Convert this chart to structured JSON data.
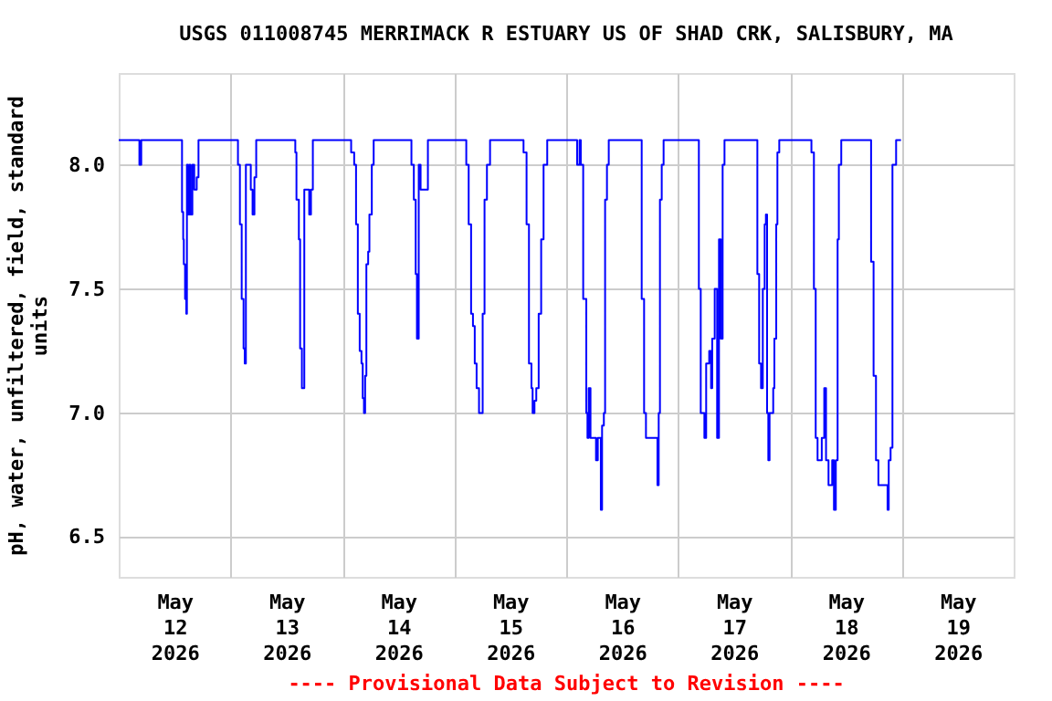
{
  "chart_data": {
    "type": "step",
    "title": "USGS 011008745 MERRIMACK R ESTUARY US OF SHAD CRK, SALISBURY, MA",
    "ylabel": "pH, water, unfiltered, field, standard units",
    "annotations": [
      "---- Provisional Data Subject to Revision ----"
    ],
    "xlim": [
      "2026-05-12T00:00",
      "2026-05-20T00:00"
    ],
    "xticks": [
      {
        "value": "2026-05-12T12:00",
        "label": "May\n12\n2026"
      },
      {
        "value": "2026-05-13T12:00",
        "label": "May\n13\n2026"
      },
      {
        "value": "2026-05-14T12:00",
        "label": "May\n14\n2026"
      },
      {
        "value": "2026-05-15T12:00",
        "label": "May\n15\n2026"
      },
      {
        "value": "2026-05-16T12:00",
        "label": "May\n16\n2026"
      },
      {
        "value": "2026-05-17T12:00",
        "label": "May\n17\n2026"
      },
      {
        "value": "2026-05-18T12:00",
        "label": "May\n18\n2026"
      },
      {
        "value": "2026-05-19T12:00",
        "label": "May\n19\n2026"
      },
      {
        "value": "2026-05-13T00:00",
        "label": null
      },
      {
        "value": "2026-05-14T00:00",
        "label": null
      },
      {
        "value": "2026-05-15T00:00",
        "label": null
      },
      {
        "value": "2026-05-16T00:00",
        "label": null
      },
      {
        "value": "2026-05-17T00:00",
        "label": null
      },
      {
        "value": "2026-05-18T00:00",
        "label": null
      },
      {
        "value": "2026-05-19T00:00",
        "label": null
      }
    ],
    "ylim": [
      6.34,
      8.37
    ],
    "yticks": [
      6.5,
      {
        "value": 7,
        "label": "7.0"
      },
      7.5,
      {
        "value": 8,
        "label": "8.0"
      }
    ],
    "grid": true,
    "marker": "none",
    "line_style": "solid",
    "series": [
      {
        "color": "#0000ff",
        "x": [
          "2026-05-12T00:00",
          "2026-05-12T04:26",
          "2026-05-12T04:50",
          "2026-05-12T13:35",
          "2026-05-12T13:50",
          "2026-05-12T13:58",
          "2026-05-12T14:14",
          "2026-05-12T14:30",
          "2026-05-12T14:38",
          "2026-05-12T14:53",
          "2026-05-12T15:09",
          "2026-05-12T15:24",
          "2026-05-12T15:48",
          "2026-05-12T16:12",
          "2026-05-12T16:44",
          "2026-05-12T17:07",
          "2026-05-13T01:35",
          "2026-05-13T02:00",
          "2026-05-13T02:23",
          "2026-05-13T02:47",
          "2026-05-13T03:02",
          "2026-05-13T03:17",
          "2026-05-13T04:20",
          "2026-05-13T04:43",
          "2026-05-13T05:07",
          "2026-05-13T05:30",
          "2026-05-13T13:53",
          "2026-05-13T14:08",
          "2026-05-13T14:39",
          "2026-05-13T14:55",
          "2026-05-13T15:18",
          "2026-05-13T15:49",
          "2026-05-13T16:52",
          "2026-05-13T17:15",
          "2026-05-13T17:39",
          "2026-05-14T01:52",
          "2026-05-14T02:31",
          "2026-05-14T02:55",
          "2026-05-14T03:18",
          "2026-05-14T03:42",
          "2026-05-14T04:05",
          "2026-05-14T04:21",
          "2026-05-14T04:37",
          "2026-05-14T04:52",
          "2026-05-14T05:08",
          "2026-05-14T05:31",
          "2026-05-14T05:47",
          "2026-05-14T06:18",
          "2026-05-14T06:42",
          "2026-05-14T14:48",
          "2026-05-14T15:19",
          "2026-05-14T15:43",
          "2026-05-14T15:59",
          "2026-05-14T16:22",
          "2026-05-14T16:46",
          "2026-05-14T18:20",
          "2026-05-15T02:34",
          "2026-05-15T03:05",
          "2026-05-15T03:36",
          "2026-05-15T04:00",
          "2026-05-15T04:23",
          "2026-05-15T04:47",
          "2026-05-15T05:18",
          "2026-05-15T06:05",
          "2026-05-15T06:29",
          "2026-05-15T07:00",
          "2026-05-15T07:40",
          "2026-05-15T14:51",
          "2026-05-15T15:30",
          "2026-05-15T16:01",
          "2026-05-15T16:33",
          "2026-05-15T16:48",
          "2026-05-15T17:12",
          "2026-05-15T17:35",
          "2026-05-15T18:06",
          "2026-05-15T18:38",
          "2026-05-15T19:09",
          "2026-05-15T19:56",
          "2026-05-16T02:21",
          "2026-05-16T02:52",
          "2026-05-16T03:08",
          "2026-05-16T03:39",
          "2026-05-16T04:19",
          "2026-05-16T04:34",
          "2026-05-16T04:50",
          "2026-05-16T05:13",
          "2026-05-16T06:24",
          "2026-05-16T06:47",
          "2026-05-16T07:26",
          "2026-05-16T07:42",
          "2026-05-16T08:05",
          "2026-05-16T08:21",
          "2026-05-16T08:45",
          "2026-05-16T09:08",
          "2026-05-16T16:12",
          "2026-05-16T16:43",
          "2026-05-16T17:07",
          "2026-05-16T19:35",
          "2026-05-16T19:51",
          "2026-05-16T20:07",
          "2026-05-16T20:30",
          "2026-05-16T20:54",
          "2026-05-17T04:28",
          "2026-05-17T04:52",
          "2026-05-17T05:39",
          "2026-05-17T06:02",
          "2026-05-17T06:41",
          "2026-05-17T07:05",
          "2026-05-17T07:20",
          "2026-05-17T07:52",
          "2026-05-17T08:23",
          "2026-05-17T08:47",
          "2026-05-17T09:10",
          "2026-05-17T09:34",
          "2026-05-17T09:58",
          "2026-05-17T17:01",
          "2026-05-17T17:24",
          "2026-05-17T17:48",
          "2026-05-17T18:11",
          "2026-05-17T18:35",
          "2026-05-17T18:51",
          "2026-05-17T19:06",
          "2026-05-17T19:22",
          "2026-05-17T19:38",
          "2026-05-17T20:25",
          "2026-05-17T20:40",
          "2026-05-17T21:04",
          "2026-05-17T21:19",
          "2026-05-17T21:43",
          "2026-05-18T04:37",
          "2026-05-18T05:09",
          "2026-05-18T05:32",
          "2026-05-18T05:56",
          "2026-05-18T06:50",
          "2026-05-18T07:22",
          "2026-05-18T07:45",
          "2026-05-18T08:17",
          "2026-05-18T09:04",
          "2026-05-18T09:27",
          "2026-05-18T09:51",
          "2026-05-18T10:14",
          "2026-05-18T10:30",
          "2026-05-18T11:01",
          "2026-05-18T17:25",
          "2026-05-18T17:57",
          "2026-05-18T18:28",
          "2026-05-18T18:59",
          "2026-05-18T20:57",
          "2026-05-18T21:12",
          "2026-05-18T21:36",
          "2026-05-18T22:00",
          "2026-05-18T22:47",
          "2026-05-18T23:50"
        ],
        "values": [
          8.1,
          8.0,
          8.1,
          7.81,
          7.7,
          7.6,
          7.46,
          7.4,
          8.0,
          7.8,
          8.0,
          7.8,
          8.0,
          7.9,
          7.95,
          8.1,
          8.0,
          7.76,
          7.46,
          7.26,
          7.2,
          8.0,
          7.9,
          7.8,
          7.95,
          8.1,
          8.05,
          7.86,
          7.7,
          7.26,
          7.1,
          7.9,
          7.8,
          7.9,
          8.1,
          8.05,
          8.0,
          7.76,
          7.4,
          7.25,
          7.2,
          7.06,
          7.0,
          7.15,
          7.6,
          7.65,
          7.8,
          8.0,
          8.1,
          8.0,
          7.86,
          7.56,
          7.3,
          8.0,
          7.9,
          8.1,
          8.0,
          7.76,
          7.4,
          7.35,
          7.2,
          7.1,
          7.0,
          7.4,
          7.86,
          8.0,
          8.1,
          8.05,
          7.76,
          7.2,
          7.1,
          7.0,
          7.05,
          7.1,
          7.4,
          7.7,
          8.0,
          8.1,
          8.0,
          8.1,
          8.0,
          7.46,
          7.0,
          6.9,
          7.1,
          6.9,
          6.81,
          6.9,
          6.61,
          6.95,
          7.0,
          7.86,
          8.0,
          8.1,
          7.46,
          7.0,
          6.9,
          6.71,
          7.0,
          7.86,
          8.0,
          8.1,
          7.5,
          7.0,
          6.9,
          7.2,
          7.25,
          7.1,
          7.3,
          7.5,
          6.9,
          7.7,
          7.3,
          8.0,
          8.1,
          7.56,
          7.2,
          7.1,
          7.5,
          7.76,
          7.8,
          7.0,
          6.81,
          7.0,
          7.1,
          7.3,
          7.76,
          8.05,
          8.1,
          8.05,
          7.5,
          6.9,
          6.81,
          6.9,
          7.1,
          6.81,
          6.71,
          6.81,
          6.61,
          6.81,
          7.7,
          8.0,
          8.1,
          7.61,
          7.15,
          6.81,
          6.71,
          6.61,
          6.81,
          6.86,
          8.0,
          8.1,
          8.1
        ]
      }
    ]
  }
}
